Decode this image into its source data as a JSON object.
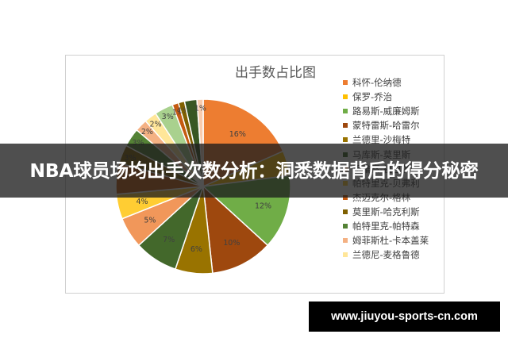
{
  "banner": {
    "headline": "NBA球员场均出手次数分析：洞悉数据背后的得分秘密"
  },
  "watermark": {
    "url": "www.jiuyou-sports-cn.com"
  },
  "chart_data": {
    "type": "pie",
    "title": "出手数占比图",
    "legend_position": "right",
    "series": [
      {
        "name": "科怀-伦纳德",
        "value": 16,
        "label": "16%",
        "color": "#ED7D31"
      },
      {
        "name": "保罗-乔治",
        "value": 4,
        "label": "",
        "color": "#FFC000"
      },
      {
        "name": "路易斯-威廉姆斯",
        "value": 12,
        "label": "12%",
        "color": "#70AD47"
      },
      {
        "name": "蒙特雷斯-哈雷尔",
        "value": 10,
        "label": "10%",
        "color": "#9E480E"
      },
      {
        "name": "兰德里-沙梅特",
        "value": 6,
        "label": "6%",
        "color": "#997300"
      },
      {
        "name": "马库斯-莫里斯",
        "value": 7,
        "label": "7%",
        "color": "#43682B"
      },
      {
        "name": "伊维察-祖巴茨",
        "value": 5,
        "label": "5%",
        "color": "#F1975A"
      },
      {
        "name": "帕特里克-贝弗利",
        "value": 4,
        "label": "4%",
        "color": "#FFCD33"
      },
      {
        "name": "杰迈克尔-格林",
        "value": 5,
        "label": "",
        "color": "#C55A11"
      },
      {
        "name": "莫里斯-哈克利斯",
        "value": 3,
        "label": "3%",
        "color": "#7F6000"
      },
      {
        "name": "帕特里克-帕特森",
        "value": 3,
        "label": "3%",
        "color": "#548235"
      },
      {
        "name": "姆菲斯杜-卡本盖莱",
        "value": 2,
        "label": "2%",
        "color": "#F4B183"
      },
      {
        "name": "兰德尼-麦格鲁德",
        "value": 2,
        "label": "2%",
        "color": "#FFE699"
      },
      {
        "name": "",
        "value": 3,
        "label": "3%",
        "color": "#A9D18E"
      },
      {
        "name": "",
        "value": 1,
        "label": "1%",
        "color": "#C55A11"
      },
      {
        "name": "",
        "value": 1,
        "label": "1%",
        "color": "#806000"
      },
      {
        "name": "",
        "value": 2,
        "label": "",
        "color": "#385723"
      },
      {
        "name": "",
        "value": 1,
        "label": "1%",
        "color": "#F8CBAD"
      }
    ]
  }
}
